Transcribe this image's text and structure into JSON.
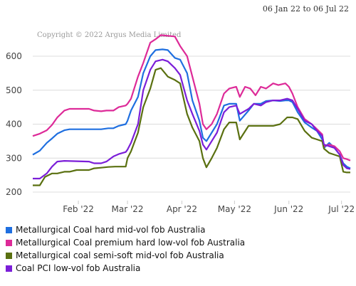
{
  "header": {
    "date_range": "06 Jan 22 to 06 Jul 22"
  },
  "watermark": "Copyright © 2022 Argus Media Limited",
  "chart_data": {
    "type": "line",
    "title": "",
    "xlabel": "",
    "ylabel": "",
    "ylim": [
      175,
      690
    ],
    "yticks": [
      200,
      300,
      400,
      500,
      600
    ],
    "xlim": [
      "2022-01-06",
      "2022-07-06"
    ],
    "xticks": [
      {
        "date": "2022-02-01",
        "label": "Feb '22"
      },
      {
        "date": "2022-03-01",
        "label": "Mar '22"
      },
      {
        "date": "2022-04-01",
        "label": "Apr '22"
      },
      {
        "date": "2022-05-01",
        "label": "May '22"
      },
      {
        "date": "2022-06-01",
        "label": "Jun '22"
      },
      {
        "date": "2022-07-01",
        "label": "Jul '22"
      }
    ],
    "grid": "horizontal",
    "legend_position": "bottom",
    "series": [
      {
        "name": "Metallurgical Coal hard mid-vol fob Australia",
        "color": "#1f6fe0",
        "points": [
          [
            "2022-01-06",
            310
          ],
          [
            "2022-01-10",
            322
          ],
          [
            "2022-01-14",
            345
          ],
          [
            "2022-01-17",
            358
          ],
          [
            "2022-01-20",
            372
          ],
          [
            "2022-01-24",
            382
          ],
          [
            "2022-01-27",
            385
          ],
          [
            "2022-02-07",
            385
          ],
          [
            "2022-02-14",
            385
          ],
          [
            "2022-02-18",
            388
          ],
          [
            "2022-02-21",
            388
          ],
          [
            "2022-02-24",
            395
          ],
          [
            "2022-02-28",
            400
          ],
          [
            "2022-03-01",
            410
          ],
          [
            "2022-03-03",
            440
          ],
          [
            "2022-03-07",
            480
          ],
          [
            "2022-03-10",
            550
          ],
          [
            "2022-03-14",
            600
          ],
          [
            "2022-03-17",
            618
          ],
          [
            "2022-03-21",
            620
          ],
          [
            "2022-03-24",
            618
          ],
          [
            "2022-03-28",
            595
          ],
          [
            "2022-03-31",
            590
          ],
          [
            "2022-04-04",
            550
          ],
          [
            "2022-04-07",
            470
          ],
          [
            "2022-04-11",
            410
          ],
          [
            "2022-04-13",
            360
          ],
          [
            "2022-04-15",
            350
          ],
          [
            "2022-04-18",
            375
          ],
          [
            "2022-04-21",
            400
          ],
          [
            "2022-04-25",
            455
          ],
          [
            "2022-04-28",
            460
          ],
          [
            "2022-05-02",
            460
          ],
          [
            "2022-05-04",
            410
          ],
          [
            "2022-05-09",
            440
          ],
          [
            "2022-05-12",
            460
          ],
          [
            "2022-05-16",
            460
          ],
          [
            "2022-05-19",
            468
          ],
          [
            "2022-05-23",
            470
          ],
          [
            "2022-05-27",
            468
          ],
          [
            "2022-05-30",
            470
          ],
          [
            "2022-06-01",
            470
          ],
          [
            "2022-06-03",
            465
          ],
          [
            "2022-06-06",
            435
          ],
          [
            "2022-06-10",
            405
          ],
          [
            "2022-06-14",
            390
          ],
          [
            "2022-06-17",
            380
          ],
          [
            "2022-06-20",
            355
          ],
          [
            "2022-06-21",
            330
          ],
          [
            "2022-06-24",
            345
          ],
          [
            "2022-06-27",
            330
          ],
          [
            "2022-06-30",
            310
          ],
          [
            "2022-07-02",
            285
          ],
          [
            "2022-07-04",
            275
          ],
          [
            "2022-07-06",
            270
          ]
        ]
      },
      {
        "name": "Metallurgical Coal premium hard low-vol fob Australia",
        "color": "#dd2a98",
        "points": [
          [
            "2022-01-06",
            365
          ],
          [
            "2022-01-10",
            372
          ],
          [
            "2022-01-14",
            382
          ],
          [
            "2022-01-17",
            398
          ],
          [
            "2022-01-20",
            420
          ],
          [
            "2022-01-24",
            440
          ],
          [
            "2022-01-27",
            445
          ],
          [
            "2022-02-07",
            445
          ],
          [
            "2022-02-10",
            440
          ],
          [
            "2022-02-14",
            438
          ],
          [
            "2022-02-17",
            440
          ],
          [
            "2022-02-21",
            440
          ],
          [
            "2022-02-24",
            450
          ],
          [
            "2022-02-28",
            455
          ],
          [
            "2022-03-01",
            460
          ],
          [
            "2022-03-03",
            475
          ],
          [
            "2022-03-07",
            540
          ],
          [
            "2022-03-10",
            580
          ],
          [
            "2022-03-14",
            640
          ],
          [
            "2022-03-17",
            650
          ],
          [
            "2022-03-20",
            662
          ],
          [
            "2022-03-24",
            660
          ],
          [
            "2022-03-28",
            658
          ],
          [
            "2022-03-31",
            630
          ],
          [
            "2022-04-04",
            600
          ],
          [
            "2022-04-07",
            540
          ],
          [
            "2022-04-11",
            460
          ],
          [
            "2022-04-13",
            400
          ],
          [
            "2022-04-15",
            385
          ],
          [
            "2022-04-18",
            400
          ],
          [
            "2022-04-21",
            430
          ],
          [
            "2022-04-25",
            490
          ],
          [
            "2022-04-28",
            505
          ],
          [
            "2022-05-02",
            510
          ],
          [
            "2022-05-04",
            480
          ],
          [
            "2022-05-07",
            510
          ],
          [
            "2022-05-10",
            505
          ],
          [
            "2022-05-13",
            485
          ],
          [
            "2022-05-16",
            510
          ],
          [
            "2022-05-19",
            505
          ],
          [
            "2022-05-23",
            520
          ],
          [
            "2022-05-26",
            515
          ],
          [
            "2022-05-30",
            520
          ],
          [
            "2022-06-01",
            510
          ],
          [
            "2022-06-03",
            490
          ],
          [
            "2022-06-06",
            450
          ],
          [
            "2022-06-10",
            415
          ],
          [
            "2022-06-14",
            400
          ],
          [
            "2022-06-17",
            385
          ],
          [
            "2022-06-20",
            370
          ],
          [
            "2022-06-21",
            335
          ],
          [
            "2022-06-24",
            340
          ],
          [
            "2022-06-27",
            335
          ],
          [
            "2022-06-30",
            320
          ],
          [
            "2022-07-02",
            300
          ],
          [
            "2022-07-04",
            297
          ],
          [
            "2022-07-06",
            293
          ]
        ]
      },
      {
        "name": "Metallurgical coal semi-soft mid-vol fob Australia",
        "color": "#5a7010",
        "points": [
          [
            "2022-01-06",
            220
          ],
          [
            "2022-01-10",
            220
          ],
          [
            "2022-01-13",
            245
          ],
          [
            "2022-01-17",
            255
          ],
          [
            "2022-01-20",
            255
          ],
          [
            "2022-01-24",
            260
          ],
          [
            "2022-01-27",
            260
          ],
          [
            "2022-01-31",
            265
          ],
          [
            "2022-02-07",
            265
          ],
          [
            "2022-02-10",
            270
          ],
          [
            "2022-02-14",
            272
          ],
          [
            "2022-02-18",
            274
          ],
          [
            "2022-02-22",
            275
          ],
          [
            "2022-02-28",
            275
          ],
          [
            "2022-03-01",
            300
          ],
          [
            "2022-03-03",
            320
          ],
          [
            "2022-03-07",
            375
          ],
          [
            "2022-03-10",
            450
          ],
          [
            "2022-03-14",
            505
          ],
          [
            "2022-03-17",
            560
          ],
          [
            "2022-03-20",
            565
          ],
          [
            "2022-03-24",
            540
          ],
          [
            "2022-03-28",
            530
          ],
          [
            "2022-03-31",
            520
          ],
          [
            "2022-04-04",
            430
          ],
          [
            "2022-04-07",
            390
          ],
          [
            "2022-04-11",
            350
          ],
          [
            "2022-04-13",
            300
          ],
          [
            "2022-04-15",
            273
          ],
          [
            "2022-04-18",
            300
          ],
          [
            "2022-04-21",
            330
          ],
          [
            "2022-04-25",
            385
          ],
          [
            "2022-04-28",
            405
          ],
          [
            "2022-05-02",
            405
          ],
          [
            "2022-05-04",
            355
          ],
          [
            "2022-05-09",
            395
          ],
          [
            "2022-05-16",
            395
          ],
          [
            "2022-05-23",
            395
          ],
          [
            "2022-05-27",
            400
          ],
          [
            "2022-05-31",
            420
          ],
          [
            "2022-06-03",
            420
          ],
          [
            "2022-06-06",
            415
          ],
          [
            "2022-06-10",
            380
          ],
          [
            "2022-06-14",
            360
          ],
          [
            "2022-06-17",
            355
          ],
          [
            "2022-06-20",
            350
          ],
          [
            "2022-06-21",
            328
          ],
          [
            "2022-06-24",
            315
          ],
          [
            "2022-06-27",
            310
          ],
          [
            "2022-06-30",
            305
          ],
          [
            "2022-07-02",
            260
          ],
          [
            "2022-07-04",
            258
          ],
          [
            "2022-07-06",
            258
          ]
        ]
      },
      {
        "name": "Coal PCI low-vol fob Australia",
        "color": "#7b1ed8",
        "points": [
          [
            "2022-01-06",
            240
          ],
          [
            "2022-01-10",
            240
          ],
          [
            "2022-01-14",
            255
          ],
          [
            "2022-01-17",
            275
          ],
          [
            "2022-01-20",
            290
          ],
          [
            "2022-01-24",
            292
          ],
          [
            "2022-02-07",
            290
          ],
          [
            "2022-02-10",
            285
          ],
          [
            "2022-02-14",
            285
          ],
          [
            "2022-02-17",
            290
          ],
          [
            "2022-02-21",
            305
          ],
          [
            "2022-02-24",
            312
          ],
          [
            "2022-02-28",
            318
          ],
          [
            "2022-03-01",
            325
          ],
          [
            "2022-03-03",
            345
          ],
          [
            "2022-03-07",
            400
          ],
          [
            "2022-03-10",
            500
          ],
          [
            "2022-03-14",
            560
          ],
          [
            "2022-03-17",
            585
          ],
          [
            "2022-03-21",
            590
          ],
          [
            "2022-03-24",
            585
          ],
          [
            "2022-03-28",
            565
          ],
          [
            "2022-03-31",
            545
          ],
          [
            "2022-04-04",
            470
          ],
          [
            "2022-04-07",
            430
          ],
          [
            "2022-04-11",
            380
          ],
          [
            "2022-04-13",
            340
          ],
          [
            "2022-04-15",
            325
          ],
          [
            "2022-04-18",
            350
          ],
          [
            "2022-04-21",
            375
          ],
          [
            "2022-04-25",
            435
          ],
          [
            "2022-04-28",
            450
          ],
          [
            "2022-05-02",
            455
          ],
          [
            "2022-05-04",
            430
          ],
          [
            "2022-05-09",
            445
          ],
          [
            "2022-05-12",
            460
          ],
          [
            "2022-05-16",
            455
          ],
          [
            "2022-05-19",
            465
          ],
          [
            "2022-05-23",
            470
          ],
          [
            "2022-05-27",
            470
          ],
          [
            "2022-05-31",
            475
          ],
          [
            "2022-06-03",
            470
          ],
          [
            "2022-06-06",
            445
          ],
          [
            "2022-06-10",
            410
          ],
          [
            "2022-06-14",
            400
          ],
          [
            "2022-06-17",
            380
          ],
          [
            "2022-06-20",
            365
          ],
          [
            "2022-06-21",
            340
          ],
          [
            "2022-06-24",
            335
          ],
          [
            "2022-06-27",
            330
          ],
          [
            "2022-06-30",
            310
          ],
          [
            "2022-07-02",
            280
          ],
          [
            "2022-07-04",
            270
          ],
          [
            "2022-07-06",
            268
          ]
        ]
      }
    ]
  }
}
